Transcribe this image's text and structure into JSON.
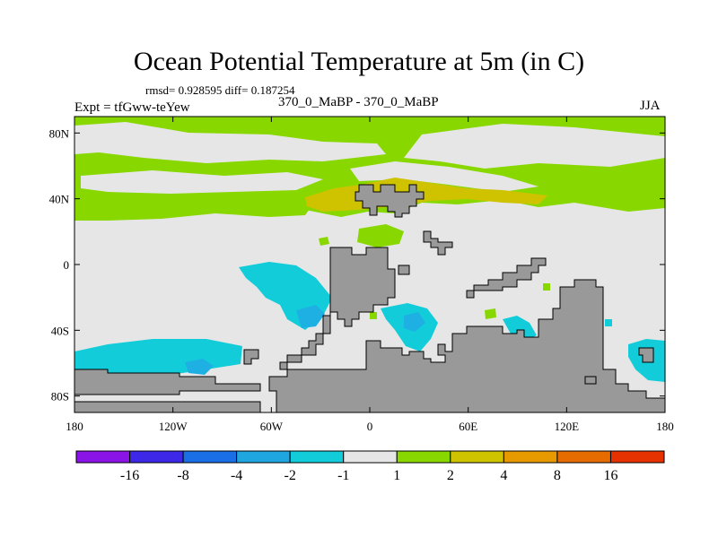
{
  "header": {
    "title": "Ocean Potential Temperature at 5m (in C)",
    "stats": "rmsd= 0.928595 diff= 0.187254",
    "expt": "Expt = tfGww-teYew",
    "center_label": "370_0_MaBP - 370_0_MaBP",
    "season": "JJA"
  },
  "colors": {
    "ocean_neutral": "#e6e6e6",
    "land": "#999999",
    "positive_small": "#88d800",
    "positive_mid": "#cfc300",
    "negative_small": "#12cdd9",
    "negative_mid": "#1fb0e3"
  },
  "chart_data": {
    "type": "heatmap",
    "title": "Ocean Potential Temperature at 5m (in C)",
    "projection": "cylindrical-equidistant",
    "x_axis": {
      "range": [
        -180,
        180
      ],
      "ticks": [
        {
          "value": -180,
          "label": "180"
        },
        {
          "value": -120,
          "label": "120W"
        },
        {
          "value": -60,
          "label": "60W"
        },
        {
          "value": 0,
          "label": "0"
        },
        {
          "value": 60,
          "label": "60E"
        },
        {
          "value": 120,
          "label": "120E"
        },
        {
          "value": 180,
          "label": "180"
        }
      ]
    },
    "y_axis": {
      "range": [
        -90,
        90
      ],
      "ticks": [
        {
          "value": 80,
          "label": "80N"
        },
        {
          "value": 40,
          "label": "40N"
        },
        {
          "value": 0,
          "label": "0"
        },
        {
          "value": -40,
          "label": "40S"
        },
        {
          "value": -80,
          "label": "80S"
        }
      ]
    },
    "colorbar": {
      "colors": [
        "#8a14e6",
        "#3c28e6",
        "#1a6ee6",
        "#1fa6e0",
        "#12cdd9",
        "#e6e6e6",
        "#88d800",
        "#cfc300",
        "#e69a00",
        "#e66c00",
        "#e63200"
      ],
      "labels": [
        "-16",
        "-8",
        "-4",
        "-2",
        "-1",
        "1",
        "2",
        "4",
        "8",
        "16"
      ]
    },
    "summary": {
      "rmsd": 0.928595,
      "diff": 0.187254,
      "experiment": "tfGww-teYew",
      "comparison": "370_0_MaBP - 370_0_MaBP",
      "season": "JJA"
    }
  }
}
